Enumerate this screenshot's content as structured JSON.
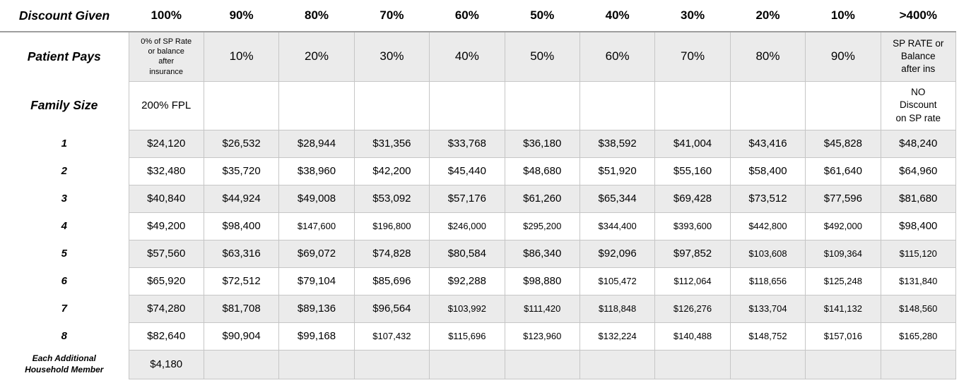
{
  "colors": {
    "row_shade": "#ebebeb",
    "grid_border": "#c6c6c6",
    "header_underline": "#9e9e9e",
    "text": "#000000",
    "background": "#ffffff"
  },
  "table": {
    "rows": [
      {
        "kind": "header",
        "label": "Discount Given",
        "shaded": false,
        "cells": [
          "100%",
          "90%",
          "80%",
          "70%",
          "60%",
          "50%",
          "40%",
          "30%",
          "20%",
          "10%",
          ">400%"
        ]
      },
      {
        "kind": "patient_pays",
        "label": "Patient Pays",
        "shaded": true,
        "cells": [
          "0% of SP Rate\nor balance\nafter\ninsurance",
          "10%",
          "20%",
          "30%",
          "40%",
          "50%",
          "60%",
          "70%",
          "80%",
          "90%",
          "SP RATE or\nBalance\nafter ins"
        ]
      },
      {
        "kind": "family_size",
        "label": "Family Size",
        "shaded": false,
        "cells": [
          "200% FPL",
          "",
          "",
          "",
          "",
          "",
          "",
          "",
          "",
          "",
          "NO\nDiscount\non SP rate"
        ]
      },
      {
        "kind": "data",
        "label": "1",
        "shaded": true,
        "cells": [
          "$24,120",
          "$26,532",
          "$28,944",
          "$31,356",
          "$33,768",
          "$36,180",
          "$38,592",
          "$41,004",
          "$43,416",
          "$45,828",
          "$48,240"
        ]
      },
      {
        "kind": "data",
        "label": "2",
        "shaded": false,
        "cells": [
          "$32,480",
          "$35,720",
          "$38,960",
          "$42,200",
          "$45,440",
          "$48,680",
          "$51,920",
          "$55,160",
          "$58,400",
          "$61,640",
          "$64,960"
        ]
      },
      {
        "kind": "data",
        "label": "3",
        "shaded": true,
        "cells": [
          "$40,840",
          "$44,924",
          "$49,008",
          "$53,092",
          "$57,176",
          "$61,260",
          "$65,344",
          "$69,428",
          "$73,512",
          "$77,596",
          "$81,680"
        ]
      },
      {
        "kind": "data",
        "label": "4",
        "shaded": false,
        "cells": [
          "$49,200",
          "$98,400",
          "$147,600",
          "$196,800",
          "$246,000",
          "$295,200",
          "$344,400",
          "$393,600",
          "$442,800",
          "$492,000",
          "$98,400"
        ]
      },
      {
        "kind": "data",
        "label": "5",
        "shaded": true,
        "cells": [
          "$57,560",
          "$63,316",
          "$69,072",
          "$74,828",
          "$80,584",
          "$86,340",
          "$92,096",
          "$97,852",
          "$103,608",
          "$109,364",
          "$115,120"
        ]
      },
      {
        "kind": "data",
        "label": "6",
        "shaded": false,
        "cells": [
          "$65,920",
          "$72,512",
          "$79,104",
          "$85,696",
          "$92,288",
          "$98,880",
          "$105,472",
          "$112,064",
          "$118,656",
          "$125,248",
          "$131,840"
        ]
      },
      {
        "kind": "data",
        "label": "7",
        "shaded": true,
        "cells": [
          "$74,280",
          "$81,708",
          "$89,136",
          "$96,564",
          "$103,992",
          "$111,420",
          "$118,848",
          "$126,276",
          "$133,704",
          "$141,132",
          "$148,560"
        ]
      },
      {
        "kind": "data",
        "label": "8",
        "shaded": false,
        "cells": [
          "$82,640",
          "$90,904",
          "$99,168",
          "$107,432",
          "$115,696",
          "$123,960",
          "$132,224",
          "$140,488",
          "$148,752",
          "$157,016",
          "$165,280"
        ]
      },
      {
        "kind": "additional",
        "label": "Each Additional\nHousehold Member",
        "shaded": true,
        "cells": [
          "$4,180",
          "",
          "",
          "",
          "",
          "",
          "",
          "",
          "",
          "",
          ""
        ]
      }
    ]
  }
}
